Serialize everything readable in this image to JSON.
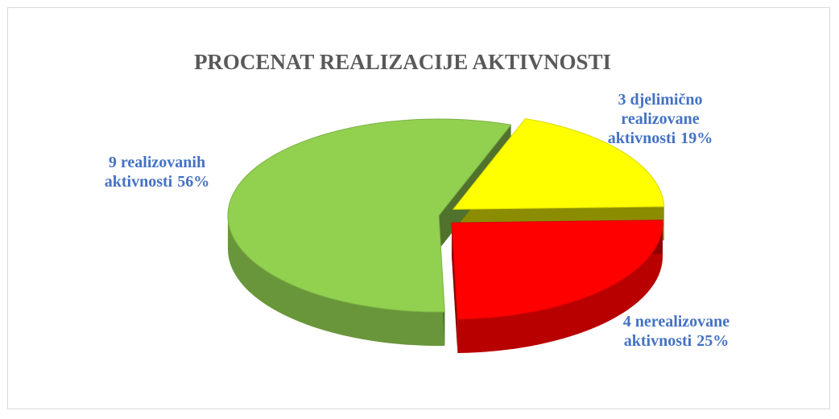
{
  "chart_data": {
    "type": "pie",
    "title": "PROCENAT REALIZACIJE AKTIVNOSTI",
    "categories": [
      "3 djelimično realizovane aktivnosti",
      "4 nerealizovane aktivnosti",
      "9 realizovanih aktivnosti"
    ],
    "values": [
      19,
      25,
      56
    ],
    "value_labels": [
      "19%",
      "25%",
      "56%"
    ],
    "colors": [
      "#ffff00",
      "#ff0000",
      "#92d050"
    ]
  }
}
